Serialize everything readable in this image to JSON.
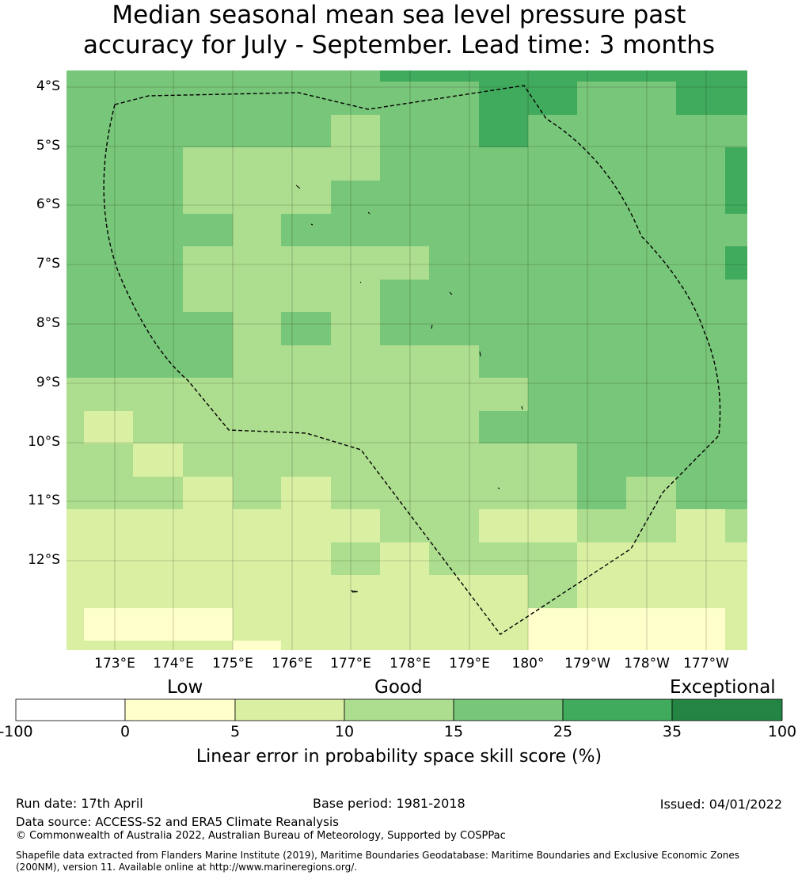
{
  "title": {
    "line1": "Median seasonal mean sea level pressure past",
    "line2": "accuracy for July - September. Lead time: 3 months"
  },
  "map": {
    "lat_labels": [
      "4°S",
      "5°S",
      "6°S",
      "7°S",
      "8°S",
      "9°S",
      "10°S",
      "11°S",
      "12°S"
    ],
    "lon_labels": [
      "173°E",
      "174°E",
      "175°E",
      "176°E",
      "177°E",
      "178°E",
      "179°E",
      "180°",
      "179°W",
      "178°W",
      "177°W"
    ],
    "lat_range": [
      "3.7°S",
      "13.5°S"
    ],
    "lon_range": [
      "172.2°E",
      "176.6°W"
    ]
  },
  "colorbar": {
    "categories": [
      "Low",
      "Good",
      "Exceptional"
    ],
    "ticks": [
      "-100",
      "0",
      "5",
      "10",
      "15",
      "25",
      "35",
      "100"
    ],
    "colors": [
      "#ffffff",
      "#ffffcc",
      "#d9f0a3",
      "#addd8e",
      "#78c679",
      "#41ab5d",
      "#238443"
    ],
    "label": "Linear error in probability space skill score (%)"
  },
  "footer": {
    "run_date": "Run date: 17th April",
    "base_period": "Base period: 1981-2018",
    "issued": "Issued: 04/01/2022",
    "data_source": "Data source: ACCESS-S2 and ERA5 Climate Reanalysis",
    "copyright": "© Commonwealth of Australia 2022, Australian Bureau of Meteorology, Supported by COSPPac",
    "shapefile": "Shapefile data extracted from Flanders Marine Institute (2019), Maritime Boundaries Geodatabase: Maritime Boundaries and Exclusive Economic Zones (200NM), version 11. Available online at http://www.marineregions.org/."
  }
}
